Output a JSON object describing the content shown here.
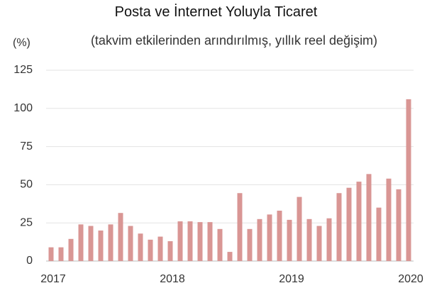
{
  "chart_data": {
    "type": "bar",
    "title": "Posta ve İnternet Yoluyla Ticaret",
    "subtitle": "(takvim etkilerinden arındırılmış, yıllık reel değişim)",
    "y_axis_label": "(%)",
    "categories": [
      "2017",
      null,
      null,
      null,
      null,
      null,
      null,
      null,
      null,
      null,
      null,
      null,
      "2018",
      null,
      null,
      null,
      null,
      null,
      null,
      null,
      null,
      null,
      null,
      null,
      "2019",
      null,
      null,
      null,
      null,
      null,
      null,
      null,
      null,
      null,
      null,
      null,
      "2020"
    ],
    "values": [
      9,
      9,
      14.5,
      24,
      23,
      20,
      24,
      31.5,
      23,
      18,
      14,
      16,
      13,
      26,
      26,
      25.5,
      25.5,
      21,
      6,
      44.5,
      21,
      27.5,
      30.5,
      33,
      27,
      42,
      27.5,
      23,
      28,
      44.5,
      48,
      52,
      57,
      35,
      54,
      47,
      106
    ],
    "color": "#d99694",
    "ylim": [
      0,
      125
    ],
    "yticks": [
      0,
      25,
      50,
      75,
      100,
      125
    ],
    "grid": true
  }
}
